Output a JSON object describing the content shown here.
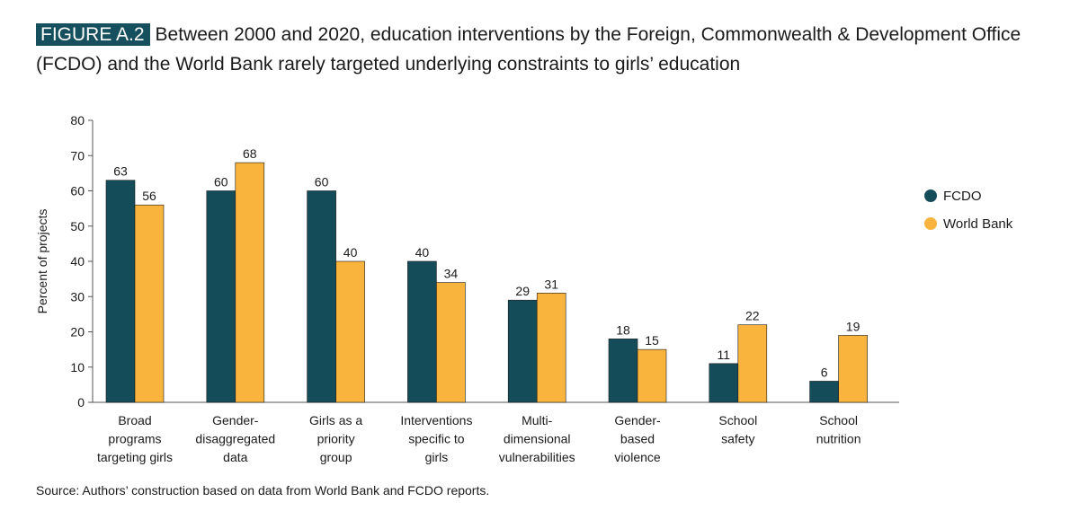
{
  "figure": {
    "tag": "FIGURE A.2",
    "title": "Between 2000 and 2020, education interventions by the Foreign, Commonwealth & Development Office (FCDO) and the World Bank rarely targeted underlying constraints to girls’ education",
    "source": "Source: Authors’ construction based on data from World Bank and FCDO reports."
  },
  "colors": {
    "FCDO": "#154c5a",
    "World Bank": "#f9b43e",
    "tag_bg": "#16505e"
  },
  "chart_data": {
    "type": "bar",
    "ylabel": "Percent of projects",
    "xlabel": "",
    "ylim": [
      0,
      80
    ],
    "yticks": [
      0,
      10,
      20,
      30,
      40,
      50,
      60,
      70,
      80
    ],
    "grid": false,
    "legend_position": "right",
    "categories": [
      [
        "Broad",
        "programs",
        "targeting girls"
      ],
      [
        "Gender-",
        "disaggregated",
        "data"
      ],
      [
        "Girls as a",
        "priority",
        "group"
      ],
      [
        "Interventions",
        "specific to",
        "girls"
      ],
      [
        "Multi-",
        "dimensional",
        "vulnerabilities"
      ],
      [
        "Gender-",
        "based",
        "violence"
      ],
      [
        "School",
        "safety"
      ],
      [
        "School",
        "nutrition"
      ]
    ],
    "series": [
      {
        "name": "FCDO",
        "values": [
          63,
          60,
          60,
          40,
          29,
          18,
          11,
          6
        ]
      },
      {
        "name": "World Bank",
        "values": [
          56,
          68,
          40,
          34,
          31,
          15,
          22,
          19
        ]
      }
    ]
  }
}
